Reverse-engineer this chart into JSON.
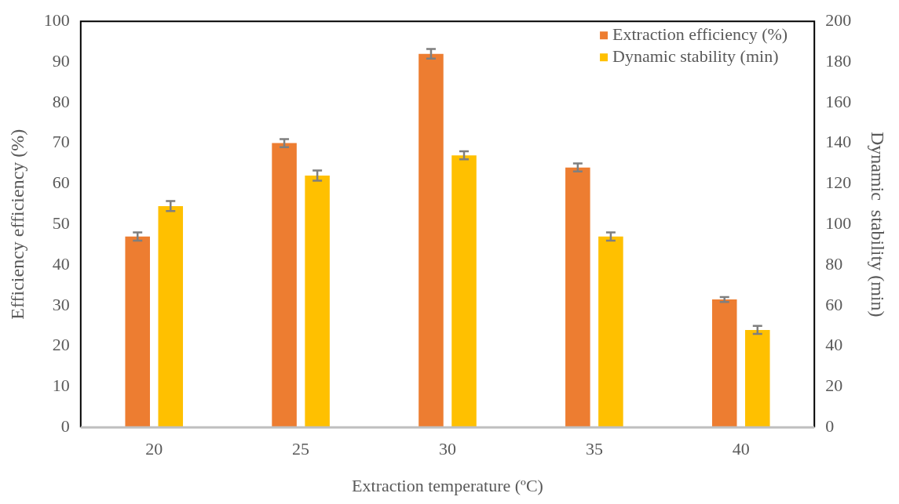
{
  "chart_data": {
    "type": "bar",
    "xlabel": "Extraction temperature (ºC)",
    "ylabel": "Efficiency efficiency (%)",
    "y2label": "Dynamic  stability (min)",
    "categories": [
      "20",
      "25",
      "30",
      "35",
      "40"
    ],
    "series": [
      {
        "name": "Extraction efficiency (%)",
        "color": "#ed7d31",
        "values": [
          47,
          70,
          92,
          64,
          31.5
        ],
        "errors": [
          1,
          1,
          1.2,
          1,
          0.6
        ]
      },
      {
        "name": "Dynamic stability (min)",
        "color": "#ffc000",
        "values": [
          109,
          124,
          134,
          94,
          48
        ],
        "errors": [
          2.5,
          2.5,
          2,
          2,
          2
        ],
        "axis": "y2"
      }
    ],
    "ylim": [
      0,
      100
    ],
    "yticks": [
      0,
      10,
      20,
      30,
      40,
      50,
      60,
      70,
      80,
      90,
      100
    ],
    "y2lim": [
      0,
      200
    ],
    "y2ticks": [
      0,
      20,
      40,
      60,
      80,
      100,
      120,
      140,
      160,
      180,
      200
    ],
    "grid": false,
    "legend": "top right"
  }
}
